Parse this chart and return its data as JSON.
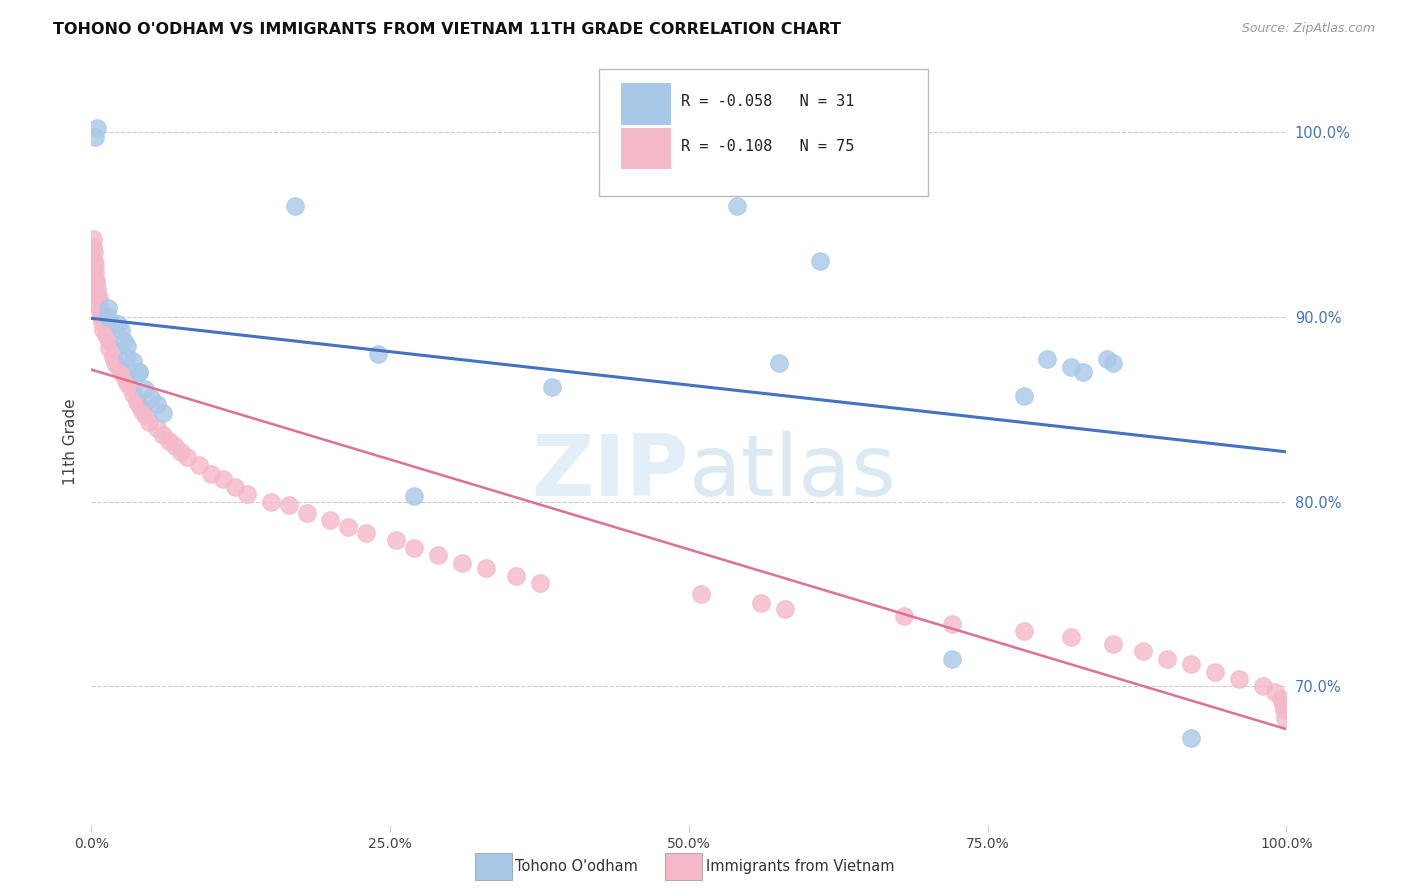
{
  "title": "TOHONO O'ODHAM VS IMMIGRANTS FROM VIETNAM 11TH GRADE CORRELATION CHART",
  "source": "Source: ZipAtlas.com",
  "ylabel": "11th Grade",
  "legend_blue_r": "R = -0.058",
  "legend_blue_n": "N = 31",
  "legend_pink_r": "R = -0.108",
  "legend_pink_n": "N = 75",
  "legend_blue_label": "Tohono O'odham",
  "legend_pink_label": "Immigrants from Vietnam",
  "blue_color": "#a8c8e8",
  "pink_color": "#f4b8c8",
  "watermark_color": "#d0e4f4",
  "blue_line_color": "#4472c4",
  "pink_line_color": "#e07090",
  "blue_r": -0.058,
  "blue_n": 31,
  "pink_r": -0.108,
  "pink_n": 75,
  "blue_points_x": [
    0.003,
    0.005,
    0.014,
    0.014,
    0.022,
    0.025,
    0.027,
    0.03,
    0.03,
    0.035,
    0.04,
    0.04,
    0.045,
    0.05,
    0.055,
    0.06,
    0.17,
    0.24,
    0.27,
    0.385,
    0.54,
    0.575,
    0.61,
    0.72,
    0.78,
    0.8,
    0.82,
    0.83,
    0.85,
    0.855,
    0.92
  ],
  "blue_points_y": [
    0.997,
    1.002,
    0.905,
    0.9,
    0.896,
    0.893,
    0.887,
    0.884,
    0.878,
    0.876,
    0.87,
    0.87,
    0.861,
    0.856,
    0.853,
    0.848,
    0.96,
    0.88,
    0.803,
    0.862,
    0.96,
    0.875,
    0.93,
    0.715,
    0.857,
    0.877,
    0.873,
    0.87,
    0.877,
    0.875,
    0.672
  ],
  "pink_points_x": [
    0.001,
    0.001,
    0.002,
    0.002,
    0.003,
    0.003,
    0.004,
    0.004,
    0.005,
    0.005,
    0.006,
    0.006,
    0.007,
    0.008,
    0.009,
    0.01,
    0.012,
    0.015,
    0.015,
    0.018,
    0.02,
    0.022,
    0.025,
    0.028,
    0.03,
    0.032,
    0.035,
    0.038,
    0.04,
    0.042,
    0.045,
    0.048,
    0.055,
    0.06,
    0.065,
    0.07,
    0.075,
    0.08,
    0.09,
    0.1,
    0.11,
    0.12,
    0.13,
    0.15,
    0.165,
    0.18,
    0.2,
    0.215,
    0.23,
    0.255,
    0.27,
    0.29,
    0.31,
    0.33,
    0.355,
    0.375,
    0.51,
    0.56,
    0.58,
    0.68,
    0.72,
    0.78,
    0.82,
    0.855,
    0.88,
    0.9,
    0.92,
    0.94,
    0.96,
    0.98,
    0.99,
    0.995,
    0.997,
    0.998,
    0.999
  ],
  "pink_points_y": [
    0.942,
    0.938,
    0.935,
    0.93,
    0.928,
    0.924,
    0.92,
    0.918,
    0.915,
    0.912,
    0.91,
    0.906,
    0.903,
    0.9,
    0.897,
    0.893,
    0.89,
    0.887,
    0.883,
    0.878,
    0.875,
    0.873,
    0.87,
    0.867,
    0.864,
    0.862,
    0.858,
    0.854,
    0.852,
    0.849,
    0.847,
    0.843,
    0.84,
    0.836,
    0.833,
    0.83,
    0.827,
    0.824,
    0.82,
    0.815,
    0.812,
    0.808,
    0.804,
    0.8,
    0.798,
    0.794,
    0.79,
    0.786,
    0.783,
    0.779,
    0.775,
    0.771,
    0.767,
    0.764,
    0.76,
    0.756,
    0.75,
    0.745,
    0.742,
    0.738,
    0.734,
    0.73,
    0.727,
    0.723,
    0.719,
    0.715,
    0.712,
    0.708,
    0.704,
    0.7,
    0.697,
    0.693,
    0.69,
    0.687,
    0.683
  ],
  "xlim": [
    0.0,
    1.0
  ],
  "ylim": [
    0.625,
    1.04
  ],
  "yticks": [
    0.7,
    0.8,
    0.9,
    1.0
  ],
  "xticks": [
    0.0,
    0.25,
    0.5,
    0.75,
    1.0
  ],
  "grid_color": "#cccccc",
  "bg_color": "#ffffff"
}
